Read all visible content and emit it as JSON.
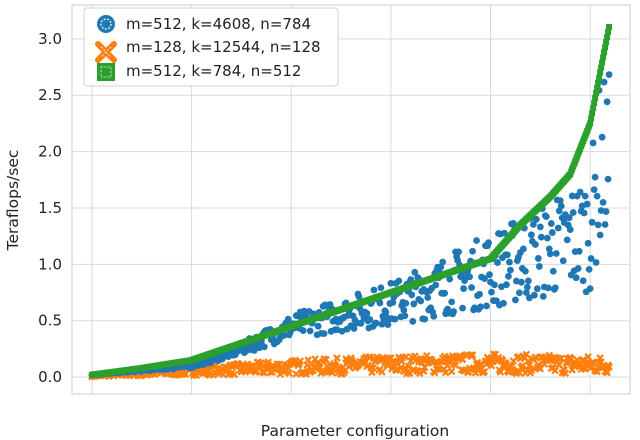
{
  "chart_data": {
    "type": "scatter",
    "xlabel": "Parameter configuration",
    "ylabel": "Teraflops/sec",
    "xlim": [
      -20,
      540
    ],
    "ylim": [
      -0.15,
      3.3
    ],
    "y_ticks": [
      "0.0",
      "0.5",
      "1.0",
      "1.5",
      "2.0",
      "2.5",
      "3.0"
    ],
    "y_tick_values": [
      0,
      0.5,
      1.0,
      1.5,
      2.0,
      2.5,
      3.0
    ],
    "x_tick_labels_visible": false,
    "grid": true,
    "legend_position": "top-left",
    "n_configurations": 520,
    "series": [
      {
        "name": "m=512, k=4608, n=784",
        "color": "#1f77b4",
        "marker": "circle",
        "description_points": [
          [
            0,
            0.02
          ],
          [
            100,
            0.1
          ],
          [
            150,
            0.25
          ],
          [
            200,
            0.45
          ],
          [
            250,
            0.55
          ],
          [
            300,
            0.65
          ],
          [
            350,
            0.8
          ],
          [
            400,
            0.95
          ],
          [
            450,
            1.1
          ],
          [
            500,
            1.3
          ],
          [
            510,
            1.9
          ]
        ]
      },
      {
        "name": "m=128, k=12544, n=128",
        "color": "#ff7f0e",
        "marker": "x",
        "description_points": [
          [
            0,
            0.01
          ],
          [
            100,
            0.05
          ],
          [
            200,
            0.08
          ],
          [
            300,
            0.1
          ],
          [
            400,
            0.11
          ],
          [
            500,
            0.1
          ]
        ]
      },
      {
        "name": "m=512, k=784, n=512",
        "color": "#2ca02c",
        "marker": "square",
        "description_points": [
          [
            0,
            0.02
          ],
          [
            50,
            0.08
          ],
          [
            100,
            0.15
          ],
          [
            150,
            0.3
          ],
          [
            200,
            0.45
          ],
          [
            250,
            0.6
          ],
          [
            300,
            0.75
          ],
          [
            350,
            0.9
          ],
          [
            400,
            1.05
          ],
          [
            430,
            1.35
          ],
          [
            460,
            1.6
          ],
          [
            480,
            1.8
          ],
          [
            500,
            2.25
          ],
          [
            510,
            2.7
          ],
          [
            520,
            3.15
          ]
        ]
      }
    ]
  }
}
